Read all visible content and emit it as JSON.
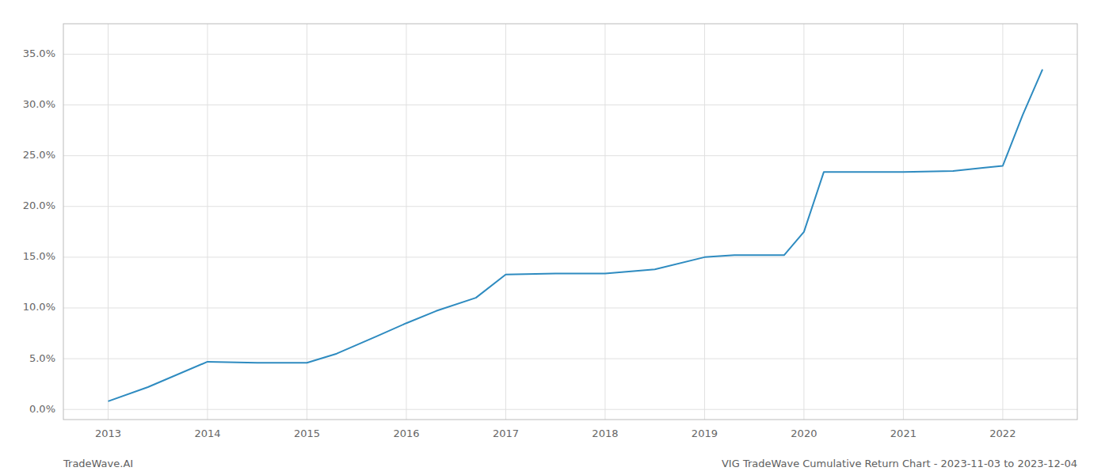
{
  "chart_data": {
    "type": "line",
    "x": [
      2013.0,
      2013.4,
      2014.0,
      2014.5,
      2015.0,
      2015.3,
      2015.7,
      2016.0,
      2016.3,
      2016.7,
      2017.0,
      2017.5,
      2018.0,
      2018.5,
      2019.0,
      2019.3,
      2019.8,
      2020.0,
      2020.2,
      2020.5,
      2020.8,
      2021.0,
      2021.5,
      2021.8,
      2022.0,
      2022.2,
      2022.4
    ],
    "values": [
      0.008,
      0.022,
      0.047,
      0.046,
      0.046,
      0.055,
      0.072,
      0.085,
      0.097,
      0.11,
      0.133,
      0.134,
      0.134,
      0.138,
      0.15,
      0.152,
      0.152,
      0.175,
      0.234,
      0.234,
      0.234,
      0.234,
      0.235,
      0.238,
      0.24,
      0.29,
      0.335
    ],
    "color": "#2e8bc0",
    "xlim": [
      2012.55,
      2022.75
    ],
    "xticks": [
      2013,
      2014,
      2015,
      2016,
      2017,
      2018,
      2019,
      2020,
      2021,
      2022
    ],
    "ylim": [
      -0.01,
      0.38
    ],
    "yticks": [
      {
        "value": 0.0,
        "label": "0.0%"
      },
      {
        "value": 0.05,
        "label": "5.0%"
      },
      {
        "value": 0.1,
        "label": "10.0%"
      },
      {
        "value": 0.15,
        "label": "15.0%"
      },
      {
        "value": 0.2,
        "label": "20.0%"
      },
      {
        "value": 0.25,
        "label": "25.0%"
      },
      {
        "value": 0.3,
        "label": "30.0%"
      },
      {
        "value": 0.35,
        "label": "35.0%"
      }
    ],
    "grid": true,
    "annotations": [
      "TradeWave.AI",
      "VIG TradeWave Cumulative Return Chart - 2023-11-03 to 2023-12-04"
    ]
  }
}
